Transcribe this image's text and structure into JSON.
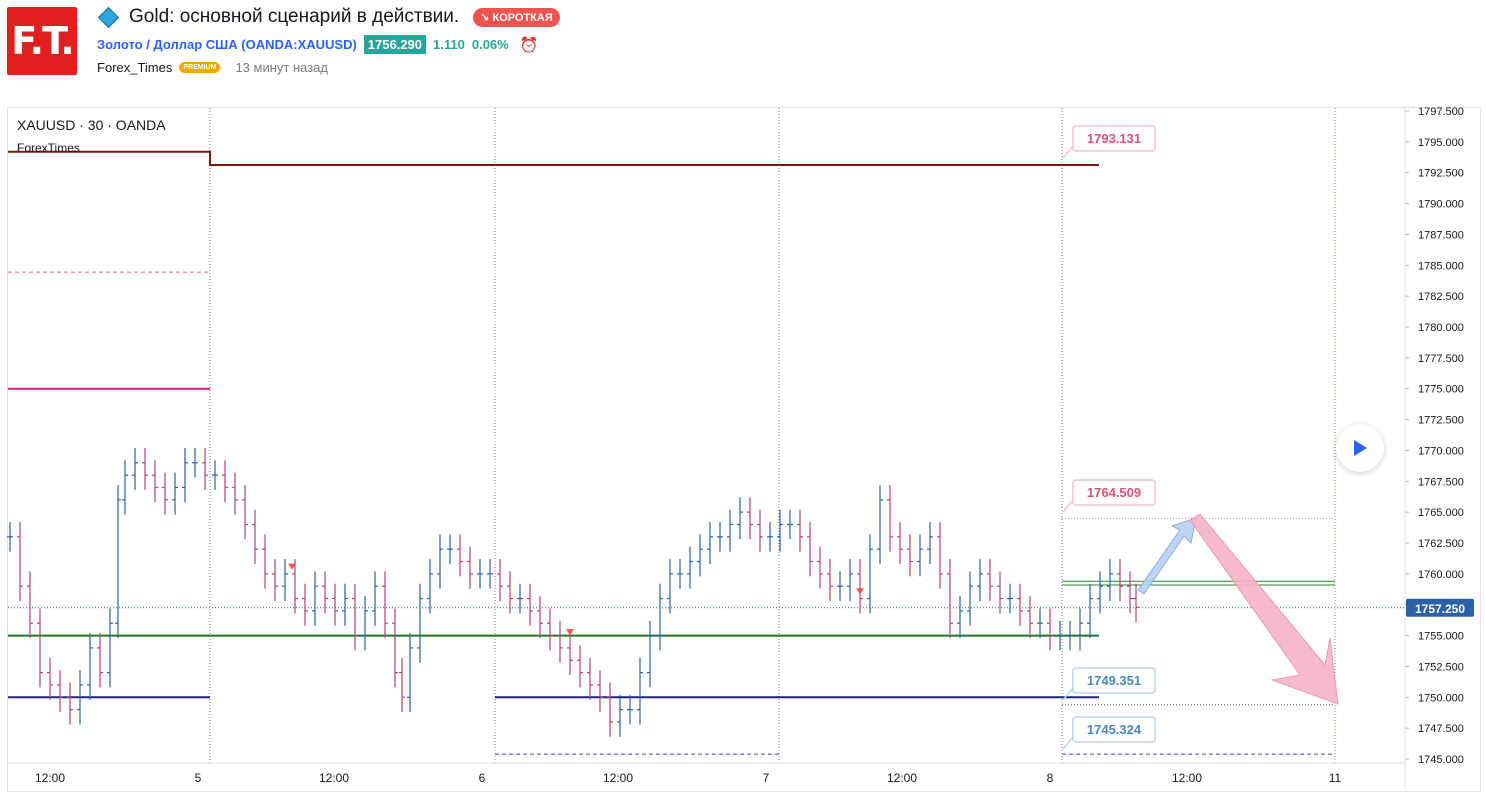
{
  "header": {
    "logo_text": "F.T.",
    "title": "Gold: основной сценарий в действии.",
    "badge": "↘ КОРОТКАЯ",
    "symbol_name": "Золото / Доллар США",
    "symbol_code": "(OANDA:XAUUSD)",
    "price": "1756.290",
    "change_abs": "1.110",
    "change_pct": "0.06%",
    "author": "Forex_Times",
    "author_badge": "PREMIUM",
    "time_ago": "13 минут назад"
  },
  "chart_data": {
    "type": "bar",
    "title": "XAUUSD · 30 · OANDA",
    "indicator": "ForexTimes",
    "current_price": "1757.250",
    "y_range": [
      1745.0,
      1797.5
    ],
    "y_ticks": [
      "1797.500",
      "1795.000",
      "1792.500",
      "1790.000",
      "1787.500",
      "1785.000",
      "1782.500",
      "1780.000",
      "1777.500",
      "1775.000",
      "1772.500",
      "1770.000",
      "1767.500",
      "1765.000",
      "1762.500",
      "1760.000",
      "1757.500",
      "1755.000",
      "1752.500",
      "1750.000",
      "1747.500",
      "1745.000"
    ],
    "x_ticks": [
      "12:00",
      "5",
      "12:00",
      "6",
      "12:00",
      "7",
      "12:00",
      "8",
      "12:00",
      "11"
    ],
    "levels": [
      {
        "label": "1793.131",
        "value": 1793.131,
        "color": "#e0507a"
      },
      {
        "label": "1764.509",
        "value": 1764.509,
        "color": "#e0507a"
      },
      {
        "label": "1749.351",
        "value": 1749.351,
        "color": "#4a86c8"
      },
      {
        "label": "1745.324",
        "value": 1745.324,
        "color": "#4a86c8"
      }
    ],
    "colors": {
      "up": "#2962a8",
      "down": "#b0427a",
      "pivot_top": "#7a1616",
      "pivot_support": "#1b7a1b",
      "pivot_low": "#1a237e"
    }
  },
  "ui": {
    "play_icon": "play-icon"
  }
}
